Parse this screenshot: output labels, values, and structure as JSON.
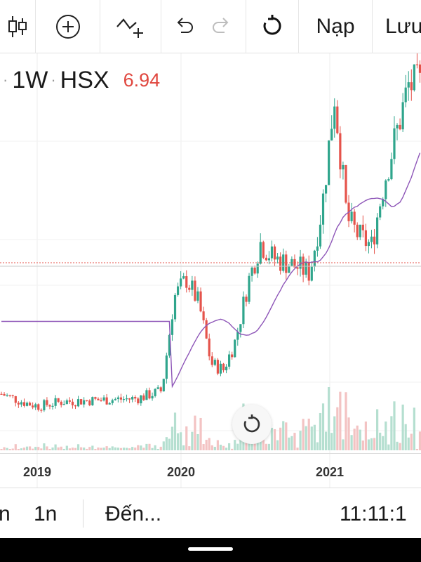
{
  "toolbar": {
    "items": [
      {
        "icon": "candlestick-chart-icon"
      },
      {
        "icon": "add-circle-icon"
      },
      {
        "icon": "add-indicator-icon"
      },
      {
        "icon": "undo-icon"
      },
      {
        "icon": "redo-icon",
        "disabled": true
      },
      {
        "icon": "reset-icon"
      }
    ],
    "load_label": "Nạp",
    "save_label": "Lưu"
  },
  "legend": {
    "interval": "1W",
    "exchange": "HSX",
    "price": "6.94",
    "price_color": "#e0473f"
  },
  "colors": {
    "up": "#2fa58c",
    "down": "#e5534b",
    "ma_line": "#8e56b8",
    "volume_up": "#b5dfd0",
    "volume_down": "#f3c3c3",
    "price_line": "#e5534b"
  },
  "chart_data": {
    "type": "candlestick",
    "interval": "1W",
    "x_tick_labels": [
      "2019",
      "2020",
      "2021"
    ],
    "visible_range": [
      "2018-10",
      "2021-07"
    ],
    "price_line_value": 6.94,
    "close_approx": [
      {
        "date": "2018-10",
        "close": 2.6
      },
      {
        "date": "2018-12",
        "close": 2.3
      },
      {
        "date": "2019-01",
        "close": 2.2
      },
      {
        "date": "2019-03",
        "close": 2.35
      },
      {
        "date": "2019-06",
        "close": 2.4
      },
      {
        "date": "2019-09",
        "close": 2.45
      },
      {
        "date": "2019-11",
        "close": 2.7
      },
      {
        "date": "2019-12",
        "close": 5.8
      },
      {
        "date": "2020-01",
        "close": 6.4
      },
      {
        "date": "2020-02",
        "close": 5.6
      },
      {
        "date": "2020-03",
        "close": 3.6
      },
      {
        "date": "2020-04",
        "close": 3.4
      },
      {
        "date": "2020-05",
        "close": 4.4
      },
      {
        "date": "2020-06",
        "close": 6.3
      },
      {
        "date": "2020-07",
        "close": 7.6
      },
      {
        "date": "2020-08",
        "close": 7.1
      },
      {
        "date": "2020-10",
        "close": 6.8
      },
      {
        "date": "2020-11",
        "close": 6.6
      },
      {
        "date": "2020-12",
        "close": 8.8
      },
      {
        "date": "2021-01",
        "close": 12.5
      },
      {
        "date": "2021-02",
        "close": 8.4
      },
      {
        "date": "2021-03",
        "close": 7.8
      },
      {
        "date": "2021-04",
        "close": 7.5
      },
      {
        "date": "2021-05",
        "close": 9.6
      },
      {
        "date": "2021-06",
        "close": 11.2
      },
      {
        "date": "2021-07",
        "close": 12.8
      }
    ]
  },
  "reset_button": {
    "icon": "reset-view-icon"
  },
  "bottom": {
    "range_label": "n",
    "interval_label": "1n",
    "goto_label": "Đến...",
    "time": "11:11:1"
  }
}
